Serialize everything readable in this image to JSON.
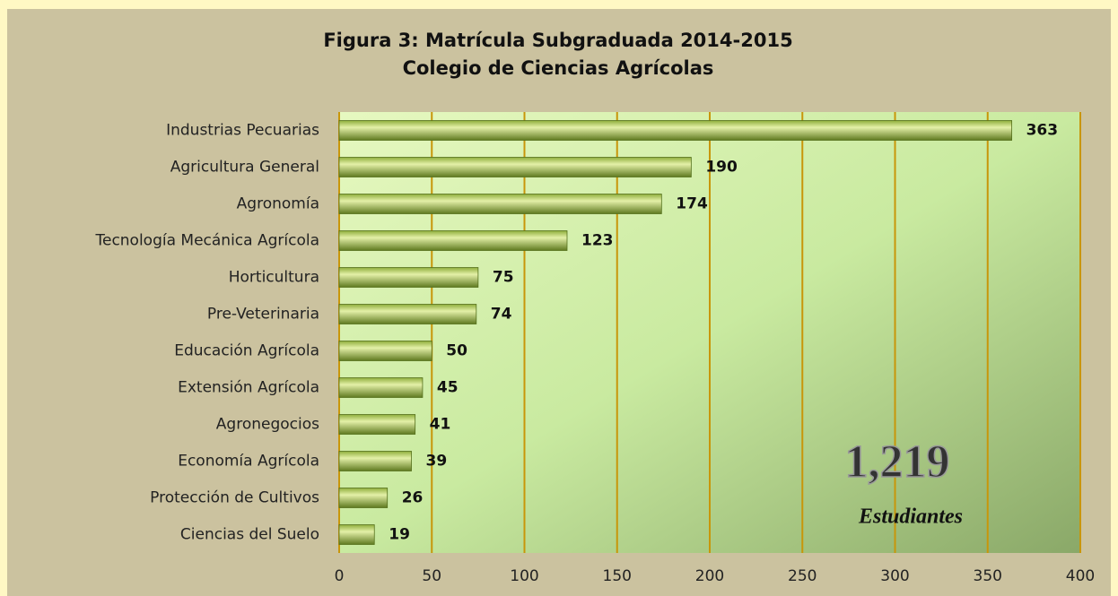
{
  "chart_data": {
    "type": "bar",
    "orientation": "horizontal",
    "title": "Figura 3: Matrícula Subgraduada 2014-2015",
    "subtitle": "Colegio de Ciencias Agrícolas",
    "categories": [
      "Industrias Pecuarias",
      "Agricultura General",
      "Agronomía",
      "Tecnología Mecánica Agrícola",
      "Horticultura",
      "Pre-Veterinaria",
      "Educación Agrícola",
      "Extensión Agrícola",
      "Agronegocios",
      "Economía Agrícola",
      "Protección de Cultivos",
      "Ciencias del Suelo"
    ],
    "values": [
      363,
      190,
      174,
      123,
      75,
      74,
      50,
      45,
      41,
      39,
      26,
      19
    ],
    "color": "#8fae3c",
    "xlim": [
      0,
      400
    ],
    "xticks": [
      0,
      50,
      100,
      150,
      200,
      250,
      300,
      350,
      400
    ],
    "grid": true,
    "grid_color": "#c8960a",
    "annotations": [
      "1,219",
      "Estudiantes"
    ]
  }
}
